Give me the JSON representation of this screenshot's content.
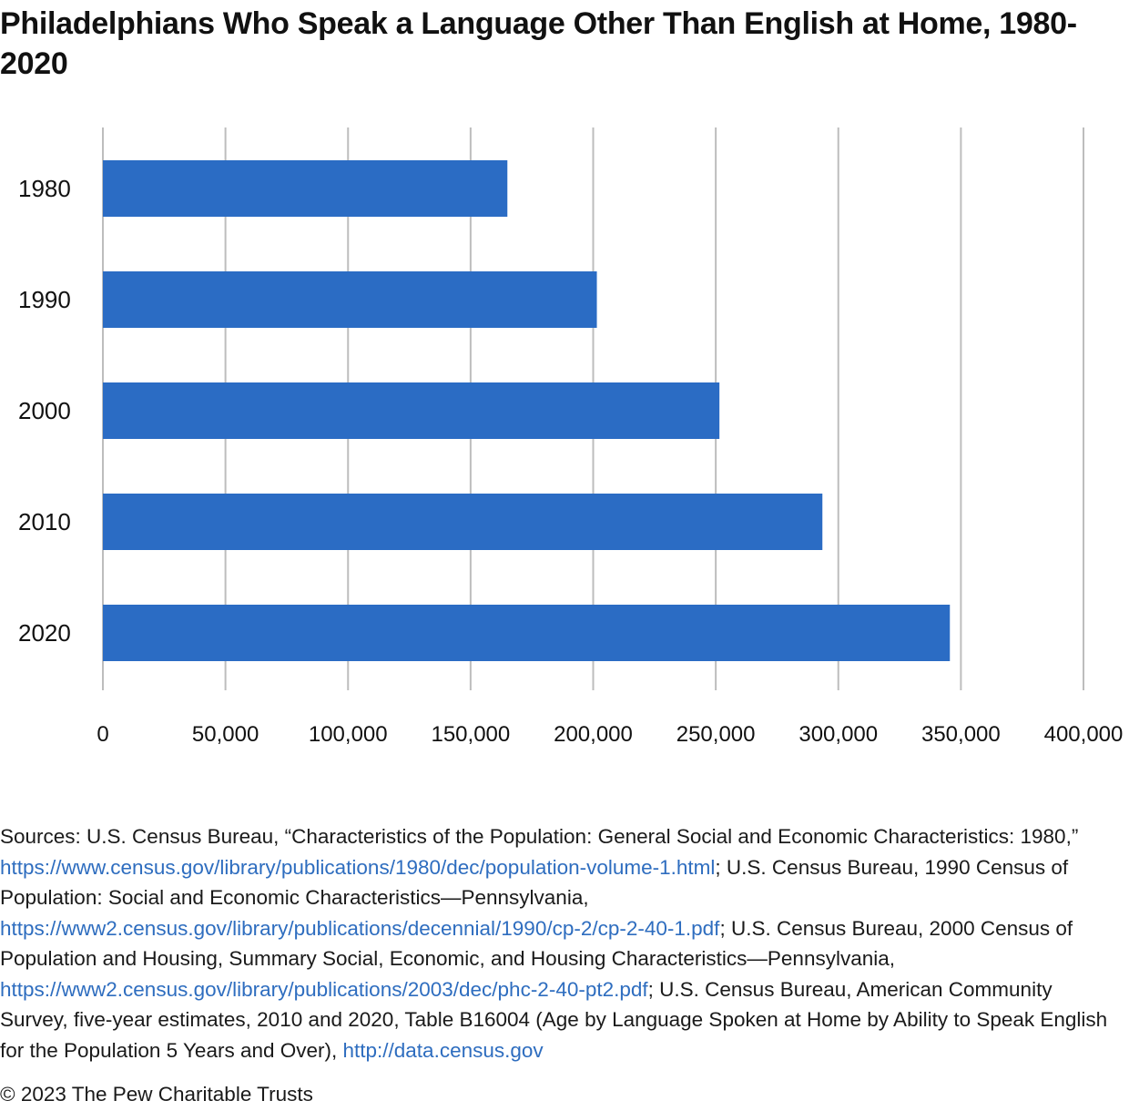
{
  "chart_data": {
    "type": "bar",
    "orientation": "horizontal",
    "title": "Philadelphians Who Speak a Language Other Than English at Home, 1980-2020",
    "categories": [
      "1980",
      "1990",
      "2000",
      "2010",
      "2020"
    ],
    "values": [
      165000,
      201500,
      251500,
      293500,
      345500
    ],
    "xlim": [
      0,
      400000
    ],
    "ticks": [
      "0",
      "50,000",
      "100,000",
      "150,000",
      "200,000",
      "250,000",
      "300,000",
      "350,000",
      "400,000"
    ],
    "tick_values": [
      0,
      50000,
      100000,
      150000,
      200000,
      250000,
      300000,
      350000,
      400000
    ],
    "grid": true,
    "bar_color": "#2b6cc4",
    "grid_color": "#bdbdbd"
  },
  "sources": {
    "t1": "Sources: U.S. Census Bureau, “Characteristics of the Population: General Social and Economic Characteristics: 1980,” ",
    "link1": "https://www.census.gov/library/publications/1980/dec/population-volume-1.html",
    "t2": "; U.S. Census Bureau, 1990 Census of Population: Social and Economic Characteristics—Pennsylvania, ",
    "link2": "https://www2.census.gov/library/publications/decennial/1990/cp-2/cp-2-40-1.pdf",
    "t3": "; U.S. Census Bureau, 2000 Census of Population and Housing, Summary Social, Economic, and Housing Characteristics—Pennsylvania, ",
    "link3": "https://www2.census.gov/library/publications/2003/dec/phc-2-40-pt2.pdf",
    "t4": "; U.S. Census Bureau, American Community Survey, five-year estimates, 2010 and 2020, Table B16004 (Age by Language Spoken at Home by Ability to Speak English for the Population 5 Years and Over), ",
    "link4": "http://data.census.gov",
    "link_color": "#2e6dbf"
  },
  "copyright": "© 2023 The Pew Charitable Trusts"
}
